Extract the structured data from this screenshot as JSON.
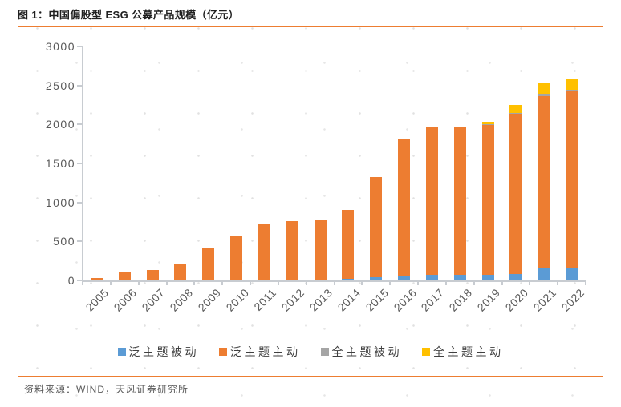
{
  "title": "图 1：中国偏股型 ESG 公募产品规模（亿元）",
  "source": "资料来源：WIND，天风证券研究所",
  "colors": {
    "accent_rule": "#ED7D31",
    "axis_line": "#C8CCD1",
    "tick_label": "#595959",
    "legend_text": "#404040",
    "title_text": "#1F1F1F"
  },
  "chart_data": {
    "type": "bar",
    "stacked": true,
    "title": "中国偏股型 ESG 公募产品规模（亿元）",
    "xlabel": "",
    "ylabel": "",
    "ylim": [
      0,
      3000
    ],
    "yticks": [
      0,
      500,
      1000,
      1500,
      2000,
      2500,
      3000
    ],
    "grid": false,
    "legend_position": "bottom",
    "categories": [
      2005,
      2006,
      2007,
      2008,
      2009,
      2010,
      2011,
      2012,
      2013,
      2014,
      2015,
      2016,
      2017,
      2018,
      2019,
      2020,
      2021,
      2022
    ],
    "series": [
      {
        "name": "泛主题被动",
        "color": "#5B9BD5",
        "values": [
          0,
          0,
          0,
          0,
          0,
          0,
          0,
          0,
          0,
          20,
          45,
          55,
          75,
          75,
          75,
          85,
          155,
          155
        ]
      },
      {
        "name": "泛主题主动",
        "color": "#ED7D31",
        "values": [
          35,
          100,
          130,
          205,
          425,
          580,
          730,
          760,
          770,
          880,
          1280,
          1760,
          1895,
          1900,
          1925,
          2050,
          2210,
          2270
        ]
      },
      {
        "name": "全主题被动",
        "color": "#A5A5A5",
        "values": [
          0,
          0,
          0,
          0,
          0,
          0,
          0,
          0,
          0,
          0,
          0,
          0,
          0,
          0,
          5,
          10,
          25,
          25
        ]
      },
      {
        "name": "全主题主动",
        "color": "#FFC000",
        "values": [
          0,
          0,
          0,
          0,
          0,
          0,
          0,
          0,
          0,
          0,
          0,
          0,
          0,
          0,
          30,
          110,
          145,
          135
        ]
      }
    ]
  }
}
